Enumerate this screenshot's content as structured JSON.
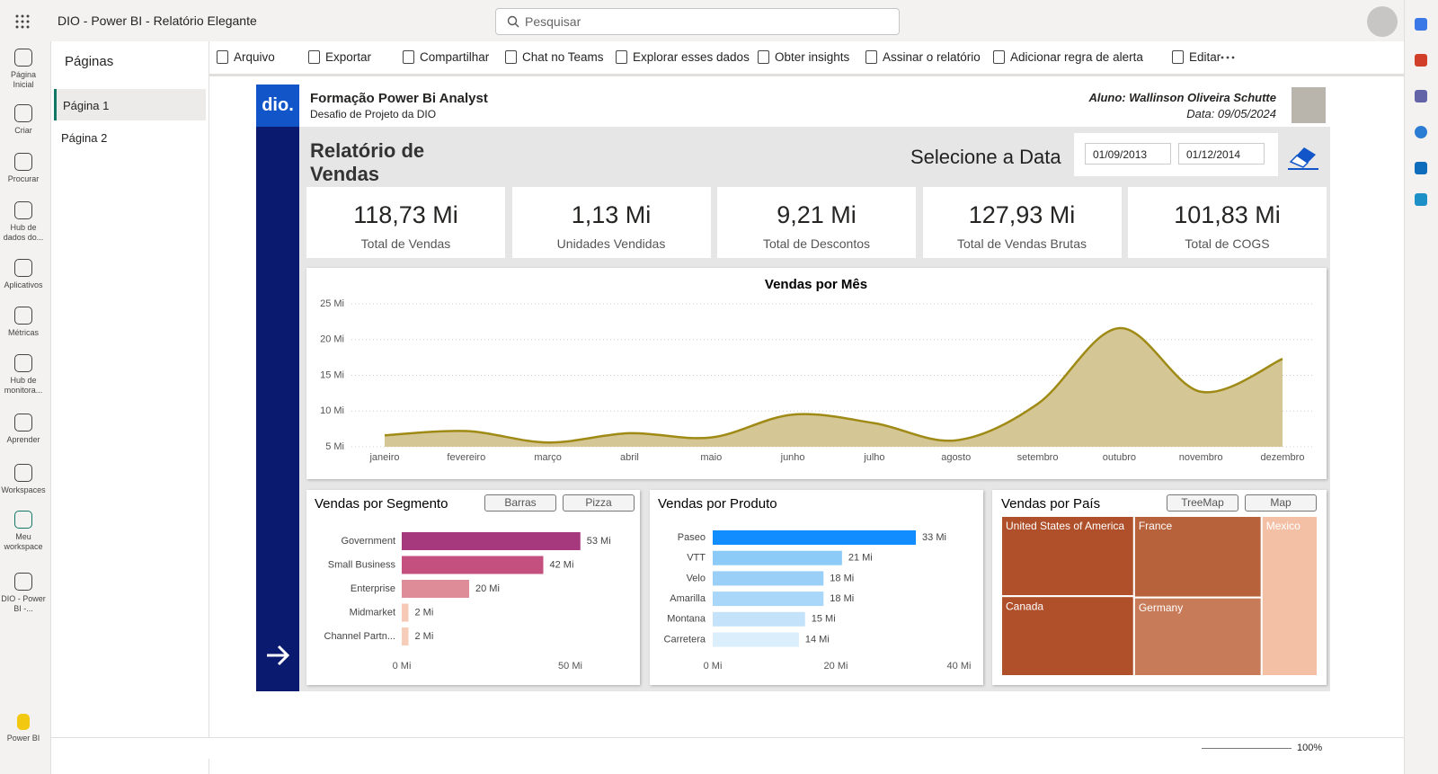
{
  "app": {
    "title": "DIO - Power BI - Relatório Elegante",
    "search": "Pesquisar",
    "zoom": "100%"
  },
  "nav": [
    "Página Inicial",
    "Criar",
    "Procurar",
    "Hub de dados do...",
    "Aplicativos",
    "Métricas",
    "Hub de monitora...",
    "Aprender",
    "Workspaces",
    "Meu workspace",
    "DIO - Power BI -...",
    "Power BI"
  ],
  "pages": {
    "title": "Páginas",
    "items": [
      "Página 1",
      "Página 2"
    ]
  },
  "toolbar": [
    "Arquivo",
    "Exportar",
    "Compartilhar",
    "Chat no Teams",
    "Explorar esses dados",
    "Obter insights",
    "Assinar o relatório",
    "Adicionar regra de alerta",
    "Editar"
  ],
  "report": {
    "logo": "dio.",
    "header": {
      "title": "Formação Power Bi Analyst",
      "subtitle": "Desafio de Projeto da DIO",
      "student": "Aluno: Wallinson Oliveira Schutte",
      "date": "Data: 09/05/2024"
    },
    "heading": "Relatório de Vendas",
    "date_prompt": "Selecione a Data",
    "date_start": "01/09/2013",
    "date_end": "01/12/2014",
    "kpis": [
      {
        "value": "118,73 Mi",
        "label": "Total de Vendas"
      },
      {
        "value": "1,13 Mi",
        "label": "Unidades Vendidas"
      },
      {
        "value": "9,21 Mi",
        "label": "Total de Descontos"
      },
      {
        "value": "127,93 Mi",
        "label": "Total de Vendas Brutas"
      },
      {
        "value": "101,83 Mi",
        "label": "Total de COGS"
      }
    ],
    "monthly": {
      "type": "area",
      "title": "Vendas por Mês",
      "categories": [
        "janeiro",
        "fevereiro",
        "março",
        "abril",
        "maio",
        "junho",
        "julho",
        "agosto",
        "setembro",
        "outubro",
        "novembro",
        "dezembro"
      ],
      "values": [
        6.6,
        7.2,
        5.6,
        6.9,
        6.3,
        9.5,
        8.3,
        5.9,
        11.0,
        21.6,
        12.7,
        17.3
      ],
      "color": "#a08a16",
      "fill": "#d4c795",
      "ylim": [
        5,
        25
      ],
      "yticks": [
        {
          "value": 5,
          "label": "5 Mi"
        },
        {
          "value": 10,
          "label": "10 Mi"
        },
        {
          "value": 15,
          "label": "15 Mi"
        },
        {
          "value": 20,
          "label": "20 Mi"
        },
        {
          "value": 25,
          "label": "25 Mi"
        }
      ],
      "grid": true
    },
    "segment": {
      "type": "hbar",
      "title": "Vendas por Segmento",
      "buttons": [
        "Barras",
        "Pizza"
      ],
      "categories": [
        "Government",
        "Small Business",
        "Enterprise",
        "Midmarket",
        "Channel Partn..."
      ],
      "values": [
        53,
        42,
        20,
        2,
        2
      ],
      "value_labels": [
        "53 Mi",
        "42 Mi",
        "20 Mi",
        "2 Mi",
        "2 Mi"
      ],
      "colors": [
        "#a6387d",
        "#c4507f",
        "#dd8c98",
        "#f6c8b6",
        "#f6cdb9"
      ],
      "xlim": [
        0,
        60
      ],
      "xticks": [
        {
          "value": 0,
          "label": "0 Mi"
        },
        {
          "value": 50,
          "label": "50 Mi"
        }
      ]
    },
    "product": {
      "type": "hbar",
      "title": "Vendas por Produto",
      "categories": [
        "Paseo",
        "VTT",
        "Velo",
        "Amarilla",
        "Montana",
        "Carretera"
      ],
      "values": [
        33,
        21,
        18,
        18,
        15,
        14
      ],
      "value_labels": [
        "33 Mi",
        "21 Mi",
        "18 Mi",
        "18 Mi",
        "15 Mi",
        "14 Mi"
      ],
      "colors": [
        "#118dff",
        "#8ccaf8",
        "#9ad0f8",
        "#a9d7f9",
        "#c4e3fb",
        "#dbeefc"
      ],
      "xlim": [
        0,
        40
      ],
      "xticks": [
        {
          "value": 0,
          "label": "0 Mi"
        },
        {
          "value": 20,
          "label": "20 Mi"
        },
        {
          "value": 40,
          "label": "40 Mi"
        }
      ]
    },
    "country": {
      "type": "treemap",
      "title": "Vendas por País",
      "buttons": [
        "TreeMap",
        "Map"
      ],
      "categories": [
        "United States of America",
        "Canada",
        "France",
        "Germany",
        "Mexico"
      ],
      "values": [
        25.0,
        24.9,
        24.4,
        23.5,
        21.0
      ],
      "colors": [
        "#b0502b",
        "#b0502b",
        "#b8623c",
        "#c77b59",
        "#f3bfa5"
      ]
    }
  }
}
